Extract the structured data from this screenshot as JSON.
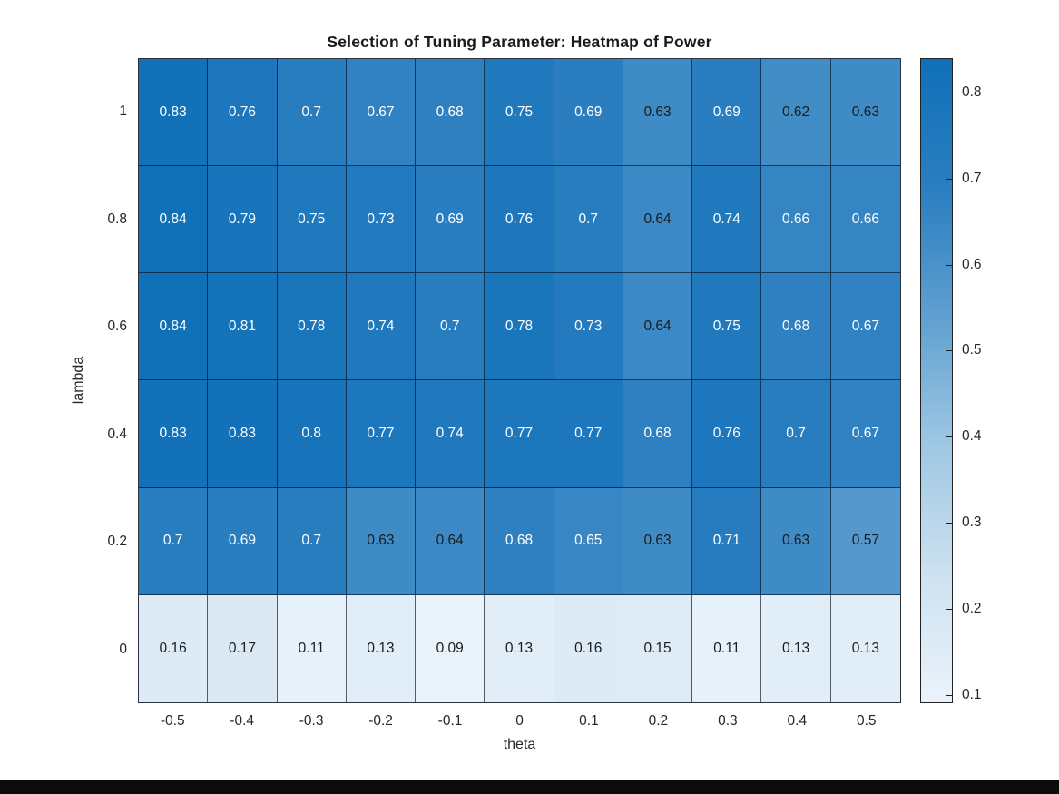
{
  "figure": {
    "background": "#ffffff",
    "bottom_bar_color": "#0b0b0b"
  },
  "chart_data": {
    "type": "heatmap",
    "title": "Selection of Tuning Parameter: Heatmap of Power",
    "xlabel": "theta",
    "ylabel": "lambda",
    "x_categories": [
      "-0.5",
      "-0.4",
      "-0.3",
      "-0.2",
      "-0.1",
      "0",
      "0.1",
      "0.2",
      "0.3",
      "0.4",
      "0.5"
    ],
    "y_categories": [
      "1",
      "0.8",
      "0.6",
      "0.4",
      "0.2",
      "0"
    ],
    "values": [
      [
        0.83,
        0.76,
        0.7,
        0.67,
        0.68,
        0.75,
        0.69,
        0.63,
        0.69,
        0.62,
        0.63
      ],
      [
        0.84,
        0.79,
        0.75,
        0.73,
        0.69,
        0.76,
        0.7,
        0.64,
        0.74,
        0.66,
        0.66
      ],
      [
        0.84,
        0.81,
        0.78,
        0.74,
        0.7,
        0.78,
        0.73,
        0.64,
        0.75,
        0.68,
        0.67
      ],
      [
        0.83,
        0.83,
        0.8,
        0.77,
        0.74,
        0.77,
        0.77,
        0.68,
        0.76,
        0.7,
        0.67
      ],
      [
        0.7,
        0.69,
        0.7,
        0.63,
        0.64,
        0.68,
        0.65,
        0.63,
        0.71,
        0.63,
        0.57
      ],
      [
        0.16,
        0.17,
        0.11,
        0.13,
        0.09,
        0.13,
        0.16,
        0.15,
        0.11,
        0.13,
        0.13
      ]
    ],
    "color_range": [
      0.09,
      0.84
    ],
    "colorbar_ticks": [
      0.8,
      0.7,
      0.6,
      0.5,
      0.4,
      0.3,
      0.2,
      0.1
    ],
    "colormap_stops": [
      "#eaf3fa",
      "#cde1f0",
      "#9ec7e3",
      "#5f9fd0",
      "#2a7ec0",
      "#1070b8"
    ],
    "grid_on": true,
    "legend_position": "colorbar-right",
    "cell_text_light": "#ffffff",
    "cell_text_dark": "#1c1c1c",
    "text_color_threshold": 0.65
  }
}
